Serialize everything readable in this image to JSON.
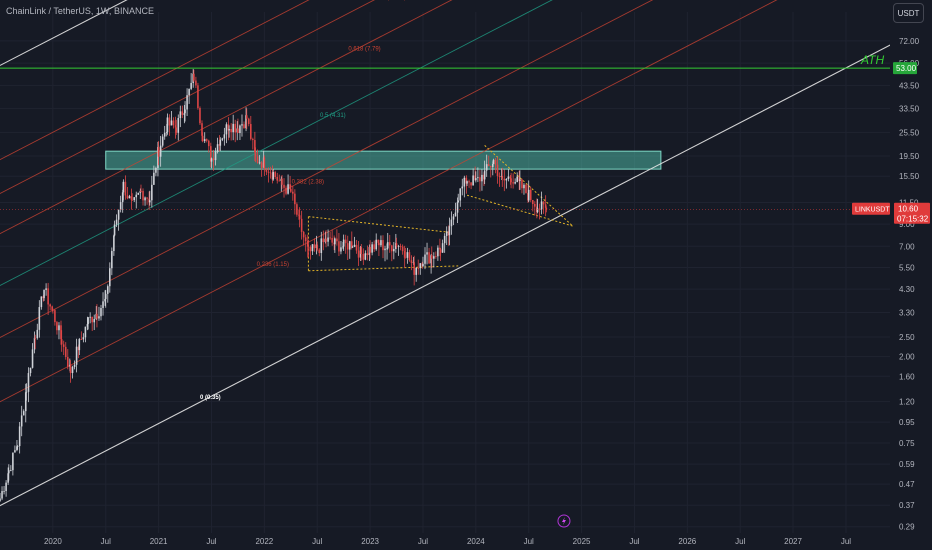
{
  "header": {
    "pair": "ChainLink / TetherUS",
    "interval": "1W",
    "exchange": "BINANCE",
    "separator": ", "
  },
  "currency_button": "USDT",
  "price_tags": {
    "ath_value": "53.00",
    "symbol": "LINKUSDT",
    "price": "10.60",
    "countdown": "07:15:32"
  },
  "annotations": {
    "ath": "ATH"
  },
  "colors": {
    "background": "#161a25",
    "candle_up": "#cfd2d8",
    "candle_down": "#e04646",
    "fib_line": "#c84232",
    "fib_mid_line": "#1f9e85",
    "channel_line": "#e6e6e6",
    "ath_line": "#33cc33",
    "zone_fill": "#4fb5a3",
    "wedge_line": "#e3b427",
    "price_tag": "#e03b3b"
  },
  "icons": {
    "lightning_marker": "lightning-icon"
  },
  "chart_data": {
    "type": "candlestick",
    "symbol": "LINKUSDT",
    "interval": "1W",
    "y_scale": "log",
    "y_range": [
      0.27,
      100
    ],
    "x_range": [
      "2019-07",
      "2027-12"
    ],
    "y_ticks": [
      "72.00",
      "56.00",
      "43.50",
      "33.50",
      "25.50",
      "19.50",
      "15.50",
      "11.50",
      "9.00",
      "7.00",
      "5.50",
      "4.30",
      "3.30",
      "2.50",
      "2.00",
      "1.60",
      "1.20",
      "0.95",
      "0.75",
      "0.59",
      "0.47",
      "0.37",
      "0.29"
    ],
    "x_ticks": [
      {
        "label": "2020",
        "date": "2020-01"
      },
      {
        "label": "Jul",
        "date": "2020-07"
      },
      {
        "label": "2021",
        "date": "2021-01"
      },
      {
        "label": "Jul",
        "date": "2021-07"
      },
      {
        "label": "2022",
        "date": "2022-01"
      },
      {
        "label": "Jul",
        "date": "2022-07"
      },
      {
        "label": "2023",
        "date": "2023-01"
      },
      {
        "label": "Jul",
        "date": "2023-07"
      },
      {
        "label": "2024",
        "date": "2024-01"
      },
      {
        "label": "Jul",
        "date": "2024-07"
      },
      {
        "label": "2025",
        "date": "2025-01"
      },
      {
        "label": "Jul",
        "date": "2025-07"
      },
      {
        "label": "2026",
        "date": "2026-01"
      },
      {
        "label": "Jul",
        "date": "2026-07"
      },
      {
        "label": "2027",
        "date": "2027-01"
      },
      {
        "label": "Jul",
        "date": "2027-07"
      }
    ],
    "price_path": [
      [
        "2019-07",
        0.4
      ],
      [
        "2019-08",
        0.55
      ],
      [
        "2019-09",
        0.75
      ],
      [
        "2019-10",
        1.4
      ],
      [
        "2019-11",
        2.6
      ],
      [
        "2019-12",
        4.3
      ],
      [
        "2020-01",
        3.3
      ],
      [
        "2020-02",
        2.4
      ],
      [
        "2020-03",
        1.7
      ],
      [
        "2020-04",
        2.3
      ],
      [
        "2020-05",
        3.0
      ],
      [
        "2020-06",
        3.3
      ],
      [
        "2020-07",
        3.8
      ],
      [
        "2020-08",
        8.5
      ],
      [
        "2020-09",
        14.0
      ],
      [
        "2020-10",
        11.0
      ],
      [
        "2020-11",
        13.0
      ],
      [
        "2020-12",
        12.0
      ],
      [
        "2021-01",
        21.0
      ],
      [
        "2021-02",
        28.0
      ],
      [
        "2021-03",
        27.0
      ],
      [
        "2021-04",
        35.0
      ],
      [
        "2021-05",
        48.0
      ],
      [
        "2021-06",
        25.0
      ],
      [
        "2021-07",
        19.0
      ],
      [
        "2021-08",
        24.0
      ],
      [
        "2021-09",
        28.0
      ],
      [
        "2021-10",
        27.0
      ],
      [
        "2021-11",
        30.0
      ],
      [
        "2021-12",
        19.0
      ],
      [
        "2022-01",
        18.0
      ],
      [
        "2022-02",
        16.0
      ],
      [
        "2022-03",
        14.0
      ],
      [
        "2022-04",
        13.0
      ],
      [
        "2022-05",
        9.0
      ],
      [
        "2022-06",
        6.5
      ],
      [
        "2022-07",
        6.8
      ],
      [
        "2022-08",
        7.5
      ],
      [
        "2022-09",
        7.2
      ],
      [
        "2022-10",
        7.0
      ],
      [
        "2022-11",
        7.3
      ],
      [
        "2022-12",
        6.4
      ],
      [
        "2023-01",
        6.8
      ],
      [
        "2023-02",
        7.2
      ],
      [
        "2023-03",
        6.9
      ],
      [
        "2023-04",
        7.3
      ],
      [
        "2023-05",
        6.6
      ],
      [
        "2023-06",
        5.4
      ],
      [
        "2023-07",
        6.1
      ],
      [
        "2023-08",
        6.3
      ],
      [
        "2023-09",
        6.8
      ],
      [
        "2023-10",
        8.2
      ],
      [
        "2023-11",
        12.5
      ],
      [
        "2023-12",
        15.0
      ],
      [
        "2024-01",
        14.5
      ],
      [
        "2024-02",
        16.0
      ],
      [
        "2024-03",
        18.5
      ],
      [
        "2024-04",
        14.5
      ],
      [
        "2024-05",
        15.5
      ],
      [
        "2024-06",
        14.0
      ],
      [
        "2024-07",
        12.5
      ],
      [
        "2024-08",
        11.0
      ],
      [
        "2024-09",
        10.6
      ]
    ],
    "ath": 52.88,
    "current_price": 10.6,
    "fib_channel": {
      "base_line": {
        "from": [
          "2019-06",
          0.35
        ],
        "to": [
          "2027-07",
          53.0
        ]
      },
      "offset_log_top": 2.17,
      "levels": [
        {
          "ratio": 0,
          "label": "0 (0.35)",
          "color": "#e6e6e6"
        },
        {
          "ratio": 0.236,
          "label": "0.236 (1.15)",
          "color": "#c84232"
        },
        {
          "ratio": 0.382,
          "label": "0.382 (2.38)",
          "color": "#c84232"
        },
        {
          "ratio": 0.5,
          "label": "0.5 (4.31)",
          "color": "#1f9e85"
        },
        {
          "ratio": 0.618,
          "label": "0.618 (7.79)",
          "color": "#c84232"
        },
        {
          "ratio": 0.709,
          "label": "0.709 (12.06)",
          "color": "#c84232"
        },
        {
          "ratio": 0.786,
          "label": "0.786 (18.11)",
          "color": "#c84232"
        },
        {
          "ratio": 1,
          "label": "",
          "color": "#e6e6e6"
        }
      ]
    },
    "zones": [
      {
        "from": "2020-07",
        "to": "2025-10",
        "low": 16.8,
        "high": 20.6
      }
    ],
    "patterns": [
      {
        "name": "range",
        "lines": [
          [
            [
              "2022-06",
              9.8
            ],
            [
              "2023-10",
              8.2
            ]
          ],
          [
            [
              "2022-06",
              5.3
            ],
            [
              "2023-11",
              5.6
            ]
          ]
        ]
      },
      {
        "name": "falling wedge",
        "lines": [
          [
            [
              "2024-02",
              22.0
            ],
            [
              "2024-12",
              8.8
            ]
          ],
          [
            [
              "2023-12",
              12.5
            ],
            [
              "2024-12",
              8.8
            ]
          ]
        ]
      }
    ]
  }
}
